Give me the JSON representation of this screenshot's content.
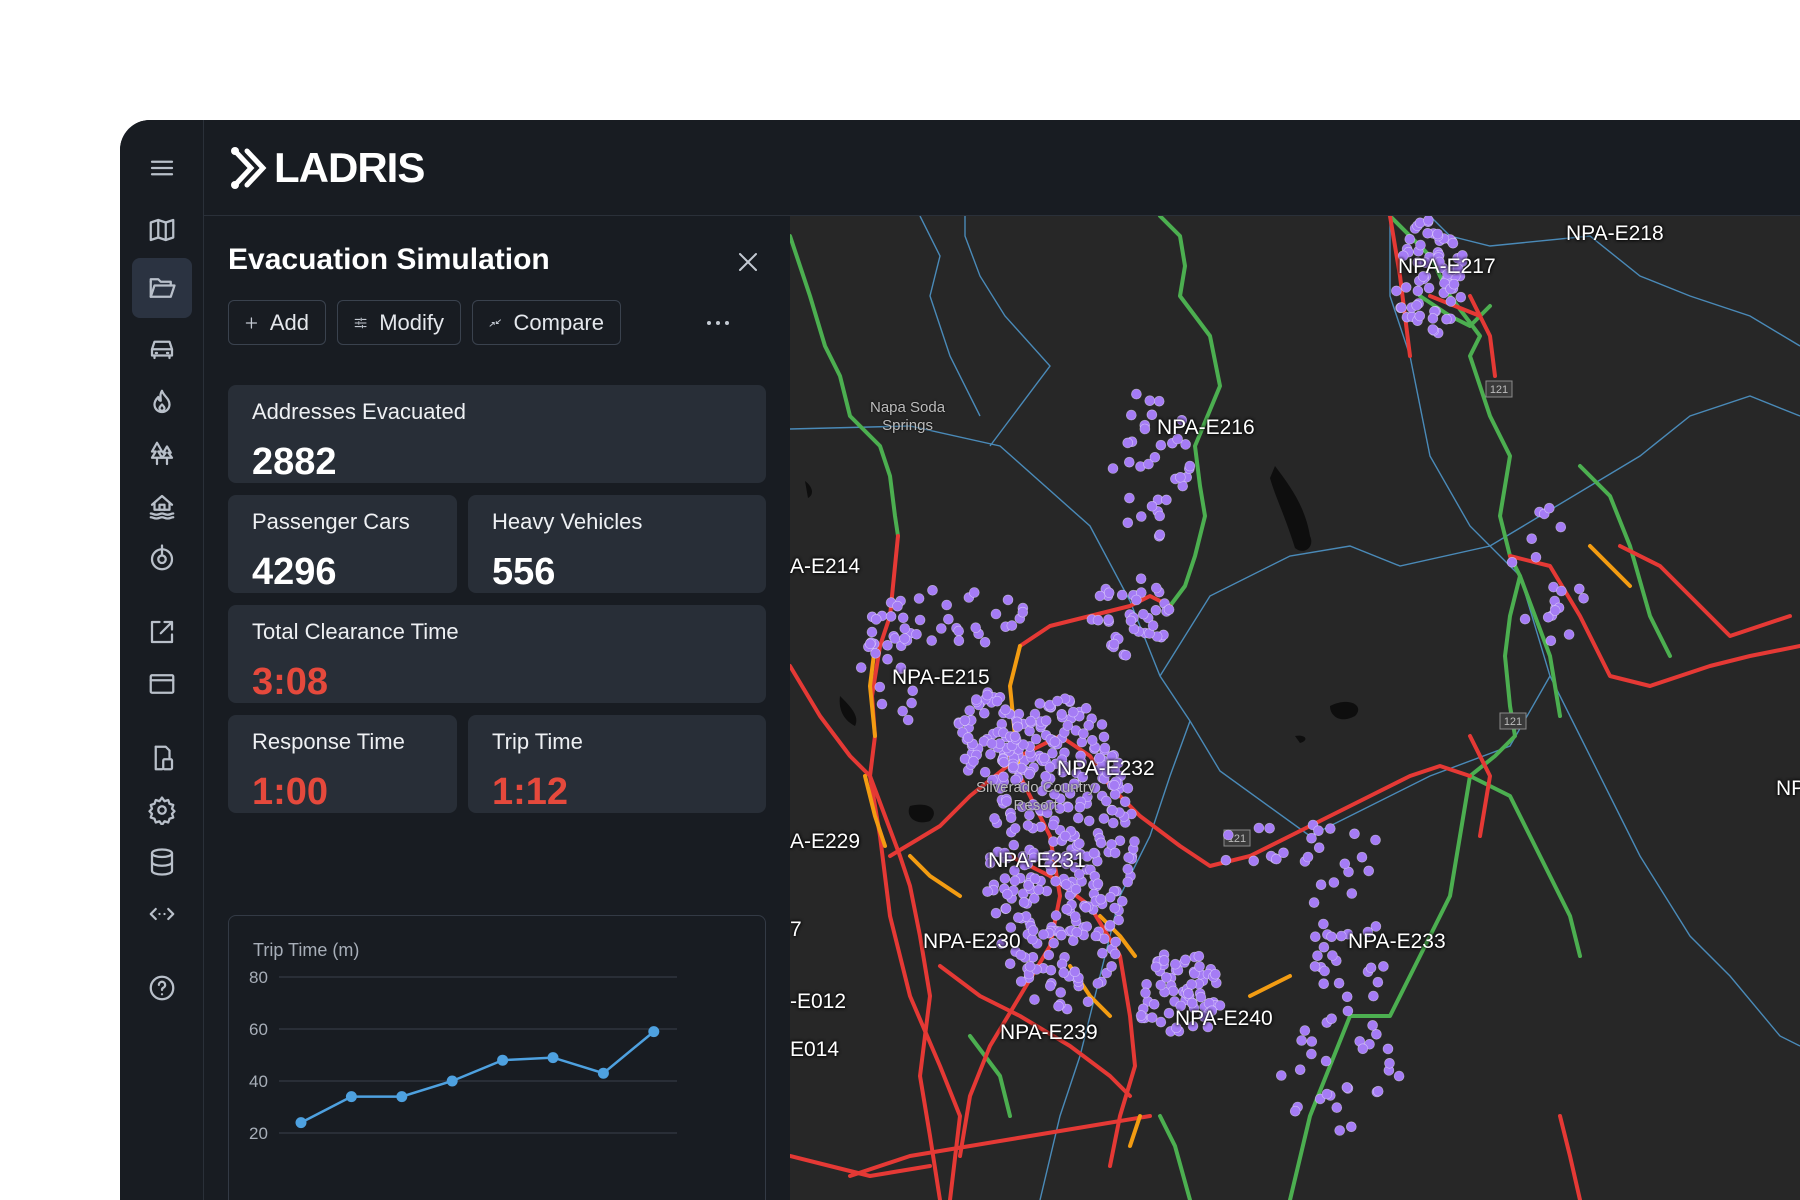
{
  "app": {
    "name": "LADRIS"
  },
  "colors": {
    "accent_red": "#e5493c",
    "point": "#a57cf5",
    "road_green": "#4caf50",
    "road_red": "#e53935",
    "road_orange": "#f39c12",
    "line_blue": "#4ea1e0"
  },
  "rail": {
    "icons": [
      "menu-icon",
      "map-icon",
      "folder-open-icon",
      "car-icon",
      "fire-icon",
      "trees-icon",
      "flood-house-icon",
      "target-icon",
      "external-link-icon",
      "window-icon",
      "device-icon",
      "settings-icon",
      "database-icon",
      "code-icon",
      "help-icon"
    ],
    "active": "folder-open-icon"
  },
  "panel": {
    "title": "Evacuation Simulation",
    "toolbar": {
      "add_label": "Add",
      "modify_label": "Modify",
      "compare_label": "Compare"
    },
    "cards": {
      "addresses": {
        "label": "Addresses Evacuated",
        "value": "2882"
      },
      "passenger_cars": {
        "label": "Passenger Cars",
        "value": "4296"
      },
      "heavy_vehicles": {
        "label": "Heavy Vehicles",
        "value": "556"
      },
      "clearance": {
        "label": "Total Clearance Time",
        "value": "3:08"
      },
      "response": {
        "label": "Response Time",
        "value": "1:00"
      },
      "trip": {
        "label": "Trip Time",
        "value": "1:12"
      }
    }
  },
  "chart_data": {
    "type": "line",
    "ylabel": "Trip Time (m)",
    "ylim": [
      20,
      80
    ],
    "yticks": [
      80,
      60,
      40,
      20
    ],
    "x": [
      1,
      2,
      3,
      4,
      5,
      6,
      7,
      8
    ],
    "series": [
      {
        "values": [
          24,
          34,
          34,
          40,
          48,
          49,
          43,
          59
        ]
      }
    ],
    "grid": true
  },
  "map": {
    "zone_labels": [
      "NPA-E218",
      "NPA-E217",
      "NPA-E216",
      "A-E214",
      "NPA-E215",
      "NPA-E232",
      "NP",
      "A-E229",
      "NPA-E231",
      "NPA-E230",
      "NPA-E233",
      "7",
      "-E012",
      "NPA-E239",
      "NPA-E240",
      "E014"
    ],
    "place_labels": [
      "Napa Soda\nSprings",
      "Silverado Country\nResort"
    ],
    "route_shields": [
      "121",
      "121",
      "121"
    ]
  }
}
